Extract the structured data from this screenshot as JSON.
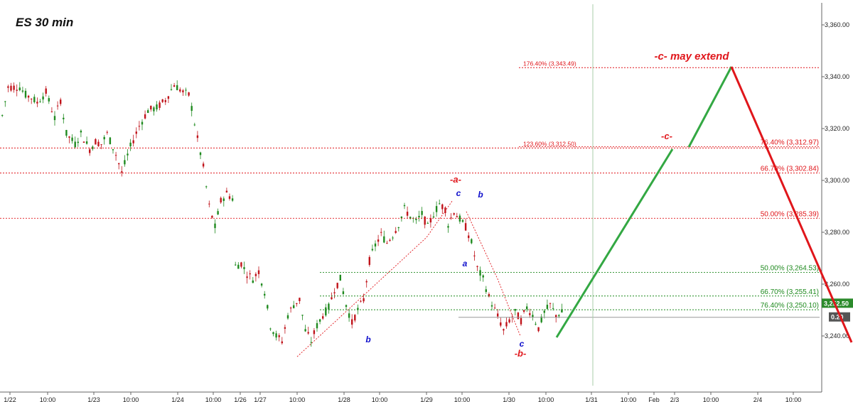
{
  "chart_data": {
    "type": "candlestick",
    "title": "ES 30 min",
    "y_axis": {
      "range": [
        3222,
        3363
      ],
      "ticks": [
        "3,240.00",
        "3,260.00",
        "3,280.00",
        "3,300.00",
        "3,320.00",
        "3,340.00",
        "3,360.00"
      ],
      "tick_values": [
        3240,
        3260,
        3280,
        3300,
        3320,
        3340,
        3360
      ],
      "position": "right"
    },
    "x_axis": {
      "ticks": [
        "1/22",
        "10:00",
        "1/23",
        "10:00",
        "1/24",
        "10:00",
        "1/26",
        "1/27",
        "10:00",
        "1/28",
        "10:00",
        "1/29",
        "10:00",
        "1/30",
        "10:00",
        "1/31",
        "10:00",
        "Feb",
        "2/3",
        "10:00",
        "2/4",
        "10:00"
      ],
      "tick_index": [
        0,
        1,
        2,
        3,
        4,
        5,
        6,
        7,
        8,
        9,
        10,
        11,
        12,
        13,
        14,
        15,
        16,
        17,
        18,
        19,
        20,
        21
      ]
    },
    "price_path": [
      [
        0,
        3325
      ],
      [
        2,
        3336
      ],
      [
        6,
        3336
      ],
      [
        8,
        3333
      ],
      [
        10,
        3332
      ],
      [
        12,
        3330
      ],
      [
        15,
        3334
      ],
      [
        18,
        3324
      ],
      [
        20,
        3331
      ],
      [
        22,
        3318
      ],
      [
        25,
        3314
      ],
      [
        27,
        3318
      ],
      [
        30,
        3312
      ],
      [
        32,
        3315
      ],
      [
        34,
        3314
      ],
      [
        36,
        3318
      ],
      [
        39,
        3310
      ],
      [
        41,
        3303
      ],
      [
        44,
        3313
      ],
      [
        47,
        3321
      ],
      [
        50,
        3327
      ],
      [
        53,
        3328
      ],
      [
        56,
        3331
      ],
      [
        59,
        3337
      ],
      [
        62,
        3334
      ],
      [
        64,
        3333
      ],
      [
        65,
        3328
      ],
      [
        67,
        3316
      ],
      [
        69,
        3305
      ],
      [
        71,
        3290
      ],
      [
        73,
        3282
      ],
      [
        75,
        3292
      ],
      [
        77,
        3295
      ],
      [
        79,
        3293
      ],
      [
        80,
        3267
      ],
      [
        82,
        3268
      ],
      [
        84,
        3264
      ],
      [
        86,
        3262
      ],
      [
        88,
        3265
      ],
      [
        90,
        3257
      ],
      [
        92,
        3244
      ],
      [
        94,
        3240
      ],
      [
        96,
        3238
      ],
      [
        98,
        3248
      ],
      [
        100,
        3252
      ],
      [
        102,
        3254
      ],
      [
        104,
        3242
      ],
      [
        106,
        3238
      ],
      [
        108,
        3244
      ],
      [
        110,
        3248
      ],
      [
        112,
        3251
      ],
      [
        114,
        3258
      ],
      [
        116,
        3262
      ],
      [
        118,
        3252
      ],
      [
        120,
        3245
      ],
      [
        122,
        3250
      ],
      [
        124,
        3254
      ],
      [
        126,
        3269
      ],
      [
        128,
        3275
      ],
      [
        130,
        3279
      ],
      [
        132,
        3276
      ],
      [
        134,
        3279
      ],
      [
        136,
        3283
      ],
      [
        138,
        3289
      ],
      [
        140,
        3286
      ],
      [
        142,
        3284
      ],
      [
        144,
        3287
      ],
      [
        146,
        3282
      ],
      [
        148,
        3287
      ],
      [
        150,
        3291
      ],
      [
        152,
        3289
      ],
      [
        153,
        3283
      ],
      [
        155,
        3288
      ],
      [
        157,
        3285
      ],
      [
        159,
        3282
      ],
      [
        161,
        3276
      ],
      [
        163,
        3266
      ],
      [
        165,
        3262
      ],
      [
        167,
        3255
      ],
      [
        169,
        3250
      ],
      [
        171,
        3245
      ],
      [
        172,
        3242
      ],
      [
        174,
        3246
      ],
      [
        176,
        3249
      ],
      [
        178,
        3246
      ],
      [
        180,
        3251
      ],
      [
        182,
        3248
      ],
      [
        184,
        3243
      ],
      [
        186,
        3249
      ],
      [
        188,
        3252
      ],
      [
        190,
        3248
      ],
      [
        192,
        3249
      ]
    ],
    "fib_levels": [
      {
        "label": "176.40% (3,343.49)",
        "value": 3343.49,
        "color": "#e0161b"
      },
      {
        "label": "123.60% (3,312.50)",
        "value": 3312.5,
        "color": "#e0161b"
      },
      {
        "label": "76.40% (3,312.97)",
        "value": 3312.97,
        "color": "#e0161b"
      },
      {
        "label": "66.70% (3,302.84)",
        "value": 3302.84,
        "color": "#e0161b"
      },
      {
        "label": "50.00% (3,285.39)",
        "value": 3285.39,
        "color": "#e0161b"
      },
      {
        "label": "50.00% (3,264.53)",
        "value": 3264.53,
        "color": "#1f8a1f"
      },
      {
        "label": "66.70% (3,255.41)",
        "value": 3255.41,
        "color": "#1f8a1f"
      },
      {
        "label": "76.40% (3,250.10)",
        "value": 3250.1,
        "color": "#1f8a1f"
      }
    ],
    "projection": {
      "green": [
        [
          "start",
          3240
        ],
        [
          "mid",
          3312
        ],
        [
          "peak",
          3343
        ]
      ],
      "red": [
        [
          "peak",
          3343
        ],
        [
          "end",
          3231
        ]
      ]
    },
    "wave_labels": {
      "blue": [
        "b",
        "c",
        "b",
        "a",
        "c"
      ],
      "red": [
        "-a-",
        "-b-",
        "-c-"
      ]
    },
    "annotation": "-c- may extend",
    "current_price_label": "3,252.50",
    "lower_badge_label": "0.20",
    "colors": {
      "up": "#1f8a1f",
      "down": "#c0141b",
      "fib_red": "#e0161b",
      "fib_green": "#1f8a1f",
      "wave_blue": "#1111cc"
    },
    "grid": false
  }
}
